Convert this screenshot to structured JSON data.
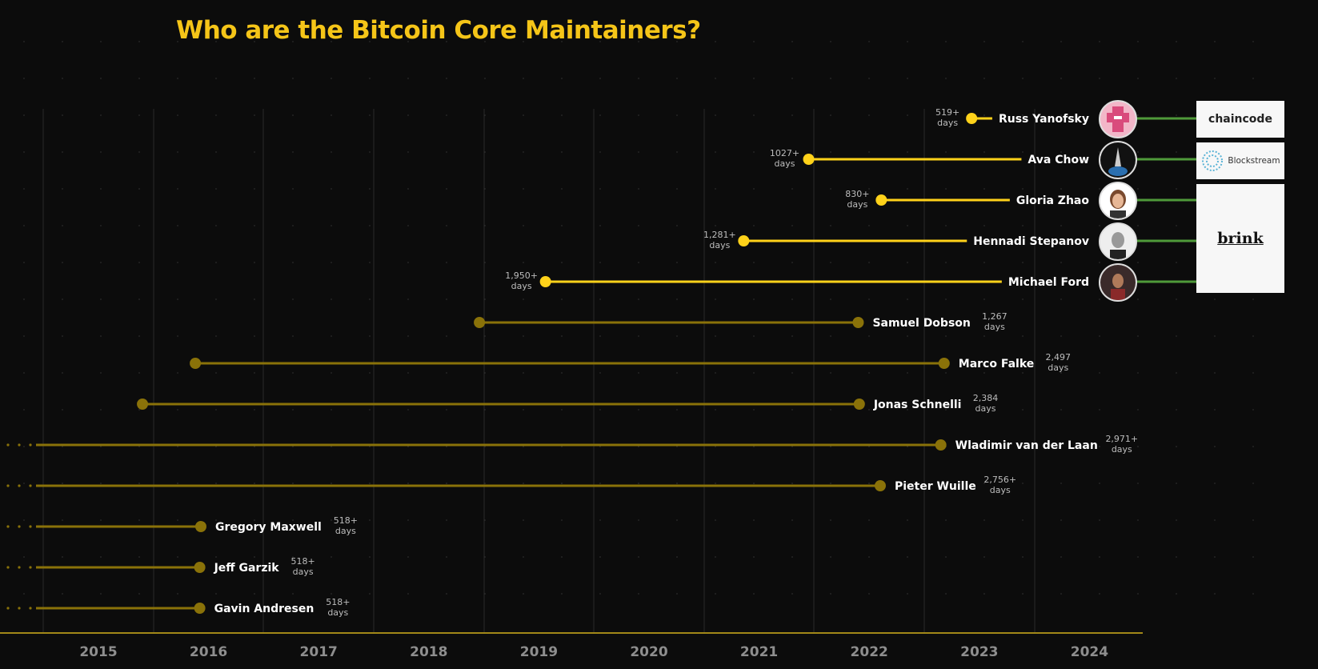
{
  "title": "Who are the Bitcoin Core Maintainers?",
  "colors": {
    "active": "#ffd21a",
    "past": "#8a7209",
    "affiliation": "#4f9a3a",
    "axis": "#d4b21c",
    "grid": "#2a2a2a"
  },
  "logos": {
    "chaincode": "chaincode",
    "blockstream": "Blockstream",
    "brink": "brink"
  },
  "chart_data": {
    "type": "timeline",
    "title": "Who are the Bitcoin Core Maintainers?",
    "x_ticks": [
      "2015",
      "2016",
      "2017",
      "2018",
      "2019",
      "2020",
      "2021",
      "2022",
      "2023",
      "2024"
    ],
    "xlim": [
      2014.5,
      2024.5
    ],
    "maintainers": [
      {
        "name": "Russ Yanofsky",
        "start": 2022.93,
        "end": 2024.35,
        "active": true,
        "days": "519+",
        "days_label": "days",
        "open_start": false,
        "affiliation": "chaincode",
        "avatar": "chaincode-avatar"
      },
      {
        "name": "Ava Chow",
        "start": 2021.45,
        "end": 2024.35,
        "active": true,
        "days": "1027+",
        "days_label": "days",
        "open_start": false,
        "affiliation": "blockstream",
        "avatar": "rocket-avatar"
      },
      {
        "name": "Gloria Zhao",
        "start": 2022.11,
        "end": 2024.35,
        "active": true,
        "days": "830+",
        "days_label": "days",
        "open_start": false,
        "affiliation": "brink",
        "avatar": "portrait-avatar"
      },
      {
        "name": "Hennadi Stepanov",
        "start": 2020.86,
        "end": 2024.35,
        "active": true,
        "days": "1,281+",
        "days_label": "days",
        "open_start": false,
        "affiliation": "brink",
        "avatar": "portrait-avatar"
      },
      {
        "name": "Michael Ford",
        "start": 2019.06,
        "end": 2024.35,
        "active": true,
        "days": "1,950+",
        "days_label": "days",
        "open_start": false,
        "affiliation": "brink",
        "avatar": "portrait-avatar"
      },
      {
        "name": "Samuel Dobson",
        "start": 2018.46,
        "end": 2021.9,
        "active": false,
        "days": "1,267",
        "days_label": "days",
        "open_start": false
      },
      {
        "name": "Marco Falke",
        "start": 2015.88,
        "end": 2022.68,
        "active": false,
        "days": "2,497",
        "days_label": "days",
        "open_start": false
      },
      {
        "name": "Jonas Schnelli",
        "start": 2015.4,
        "end": 2021.91,
        "active": false,
        "days": "2,384",
        "days_label": "days",
        "open_start": false
      },
      {
        "name": "Wladimir van der Laan",
        "start": 2014.4,
        "end": 2022.65,
        "active": false,
        "days": "2,971+",
        "days_label": "days",
        "open_start": true
      },
      {
        "name": "Pieter Wuille",
        "start": 2014.4,
        "end": 2022.1,
        "active": false,
        "days": "2,756+",
        "days_label": "days",
        "open_start": true
      },
      {
        "name": "Gregory Maxwell",
        "start": 2014.4,
        "end": 2015.93,
        "active": false,
        "days": "518+",
        "days_label": "days",
        "open_start": true
      },
      {
        "name": "Jeff Garzik",
        "start": 2014.4,
        "end": 2015.92,
        "active": false,
        "days": "518+",
        "days_label": "days",
        "open_start": true
      },
      {
        "name": "Gavin Andresen",
        "start": 2014.4,
        "end": 2015.92,
        "active": false,
        "days": "518+",
        "days_label": "days",
        "open_start": true
      }
    ]
  }
}
